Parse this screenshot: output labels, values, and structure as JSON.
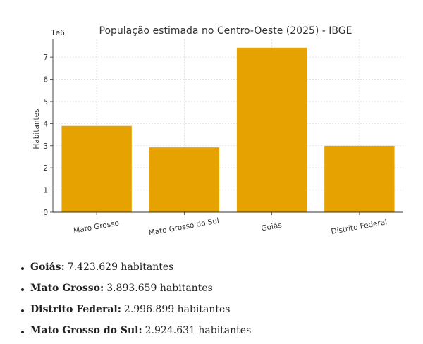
{
  "chart_data": {
    "type": "bar",
    "title": "População estimada no Centro-Oeste (2025) - IBGE",
    "xlabel": "",
    "ylabel": "Habitantes",
    "y_offset_label": "1e6",
    "categories": [
      "Mato Grosso",
      "Mato Grosso do Sul",
      "Goiás",
      "Distrito Federal"
    ],
    "values": [
      3893659,
      2924631,
      7423629,
      2996899
    ],
    "ylim": [
      0,
      7800000
    ],
    "yticks": [
      0,
      1,
      2,
      3,
      4,
      5,
      6,
      7
    ],
    "grid": true,
    "bar_color": "#E6A200"
  },
  "summary": {
    "items": [
      {
        "name": "Goiás:",
        "value": "7.423.629 habitantes"
      },
      {
        "name": "Mato Grosso:",
        "value": "3.893.659 habitantes"
      },
      {
        "name": "Distrito Federal:",
        "value": "2.996.899 habitantes"
      },
      {
        "name": "Mato Grosso do Sul:",
        "value": "2.924.631 habitantes"
      }
    ]
  }
}
